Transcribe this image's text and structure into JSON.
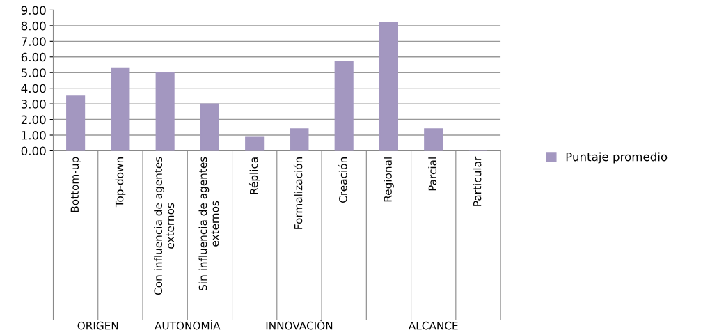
{
  "chart_data": {
    "type": "bar",
    "categories": [
      "Bottom-up",
      "Top-down",
      "Con influencia de agentes\nexternos",
      "Sin influencia de agentes\nexternos",
      "Réplica",
      "Formalización",
      "Creación",
      "Regional",
      "Parcial",
      "Particular"
    ],
    "series": [
      {
        "name": "Puntaje promedio",
        "color": "#a397c0",
        "values": [
          3.5,
          5.3,
          5.0,
          3.0,
          0.9,
          1.4,
          5.7,
          8.2,
          1.4,
          0.0
        ]
      }
    ],
    "ylim": [
      0,
      9
    ],
    "yticks": [
      {
        "value": 0,
        "label": "0.00"
      },
      {
        "value": 1,
        "label": "1.00"
      },
      {
        "value": 2,
        "label": "2.00"
      },
      {
        "value": 3,
        "label": "3.00"
      },
      {
        "value": 4,
        "label": "4.00"
      },
      {
        "value": 5,
        "label": "5.00"
      },
      {
        "value": 6,
        "label": "6.00"
      },
      {
        "value": 7,
        "label": "7.00"
      },
      {
        "value": 8,
        "label": "8.00"
      },
      {
        "value": 9,
        "label": "9.00"
      }
    ],
    "annotations": [
      "ORIGEN",
      "AUTONOMÍA",
      "INNOVACIÓN",
      "ALCANCE"
    ],
    "grid": "y",
    "legend": "right"
  }
}
